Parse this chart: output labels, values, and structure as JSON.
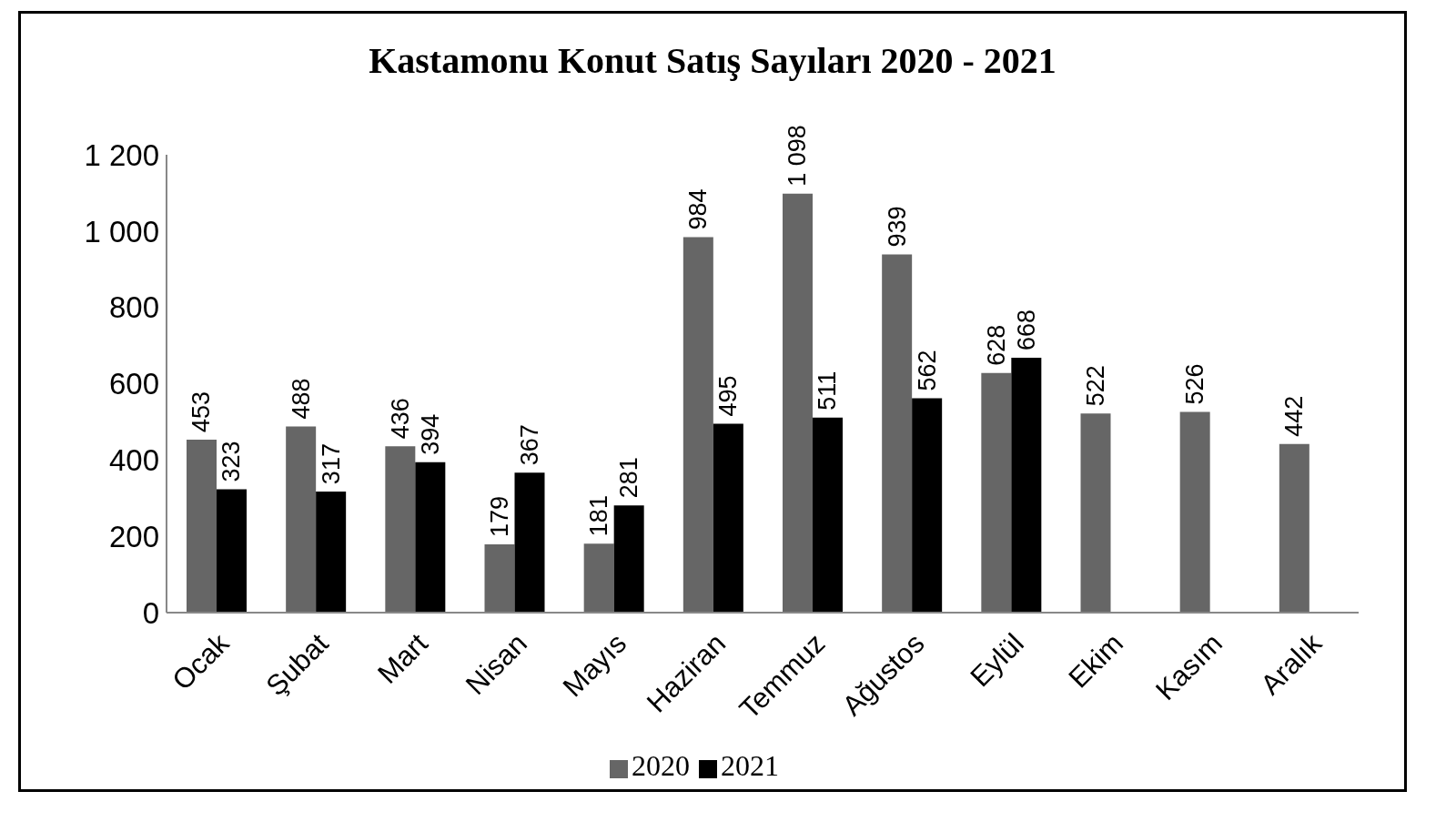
{
  "chart_data": {
    "type": "bar",
    "title": "Kastamonu Konut Satış Sayıları 2020 - 2021",
    "categories": [
      "Ocak",
      "Şubat",
      "Mart",
      "Nisan",
      "Mayıs",
      "Haziran",
      "Temmuz",
      "Ağustos",
      "Eylül",
      "Ekim",
      "Kasım",
      "Aralık"
    ],
    "series": [
      {
        "name": "2020",
        "color": "#666666",
        "values": [
          453,
          488,
          436,
          179,
          181,
          984,
          1098,
          939,
          628,
          522,
          526,
          442
        ],
        "value_labels": [
          "453",
          "488",
          "436",
          "179",
          "181",
          "984",
          "1 098",
          "939",
          "628",
          "522",
          "526",
          "442"
        ]
      },
      {
        "name": "2021",
        "color": "#000000",
        "values": [
          323,
          317,
          394,
          367,
          281,
          495,
          511,
          562,
          668,
          null,
          null,
          null
        ],
        "value_labels": [
          "323",
          "317",
          "394",
          "367",
          "281",
          "495",
          "511",
          "562",
          "668",
          null,
          null,
          null
        ]
      }
    ],
    "ylim": [
      0,
      1200
    ],
    "yticks": [
      0,
      200,
      400,
      600,
      800,
      {
        "value": 1000,
        "label": "1 000"
      },
      {
        "value": 1200,
        "label": "1 200"
      }
    ],
    "legend": "bottom"
  }
}
